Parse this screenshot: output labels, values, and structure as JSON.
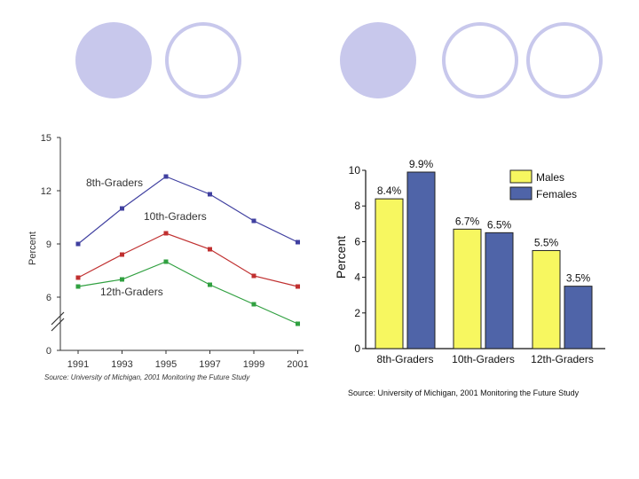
{
  "decoration": {
    "circle_fill": "#c8c8ec",
    "circle_outline": "#c8c8ec"
  },
  "chart_data": [
    {
      "type": "line",
      "x": [
        "1991",
        "1993",
        "1995",
        "1997",
        "1999",
        "2001"
      ],
      "xlabel": "",
      "ylabel": "Percent",
      "yticks": [
        "0",
        "6",
        "9",
        "12",
        "15"
      ],
      "ylim": [
        0,
        15
      ],
      "axis_break": true,
      "series": [
        {
          "name": "8th-Graders",
          "values": [
            9.0,
            11.0,
            12.8,
            11.8,
            10.3,
            9.1
          ],
          "color": "#4040a0"
        },
        {
          "name": "10th-Graders",
          "values": [
            7.1,
            8.4,
            9.6,
            8.7,
            7.2,
            6.6
          ],
          "color": "#c03030"
        },
        {
          "name": "12th-Graders",
          "values": [
            6.6,
            7.0,
            8.0,
            6.7,
            5.6,
            4.5
          ],
          "color": "#30a040"
        }
      ],
      "source": "Source: University of Michigan, 2001 Monitoring the Future Study"
    },
    {
      "type": "bar",
      "categories": [
        "8th-Graders",
        "10th-Graders",
        "12th-Graders"
      ],
      "ylabel": "Percent",
      "ylim": [
        0,
        10
      ],
      "yticks": [
        "0",
        "2",
        "4",
        "6",
        "8",
        "10"
      ],
      "legend": "top-right",
      "series": [
        {
          "name": "Males",
          "values": [
            8.4,
            6.7,
            5.5
          ],
          "labels": [
            "8.4%",
            "6.7%",
            "5.5%"
          ],
          "color": "#f7f760"
        },
        {
          "name": "Females",
          "values": [
            9.9,
            6.5,
            3.5
          ],
          "labels": [
            "9.9%",
            "6.5%",
            "3.5%"
          ],
          "color": "#4f64a8"
        }
      ],
      "source": "Source: University of Michigan, 2001 Monitoring the Future Study"
    }
  ]
}
